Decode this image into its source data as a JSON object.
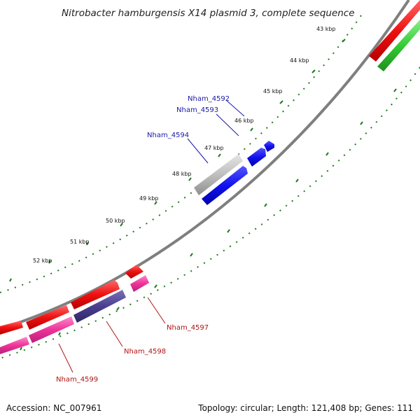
{
  "title": "Nitrobacter hamburgensis X14 plasmid 3, complete sequence",
  "colors": {
    "backbone": "#7f7f7f",
    "ticks": "#1f7a1f",
    "red_cds": "#ee1111",
    "green_cds": "#33cc33",
    "grey_cds": "#bfbfbf",
    "blue_cds": "#1111ee",
    "pink_cds": "#ee3399",
    "navy_cds": "#4a3f8f",
    "label_blue": "#1a1aaa",
    "label_red": "#b01515"
  },
  "kbp_labels": [
    "43 kbp",
    "44 kbp",
    "45 kbp",
    "46 kbp",
    "47 kbp",
    "48 kbp",
    "49 kbp",
    "50 kbp",
    "51 kbp",
    "52 kbp"
  ],
  "gene_labels": {
    "nham_4592": "Nham_4592",
    "nham_4593": "Nham_4593",
    "nham_4594": "Nham_4594",
    "nham_4597": "Nham_4597",
    "nham_4598": "Nham_4598",
    "nham_4599": "Nham_4599"
  },
  "footer": {
    "accession": "Accession: NC_007961",
    "topology": "Topology: circular; Length: 121,408 bp; Genes: 111"
  }
}
